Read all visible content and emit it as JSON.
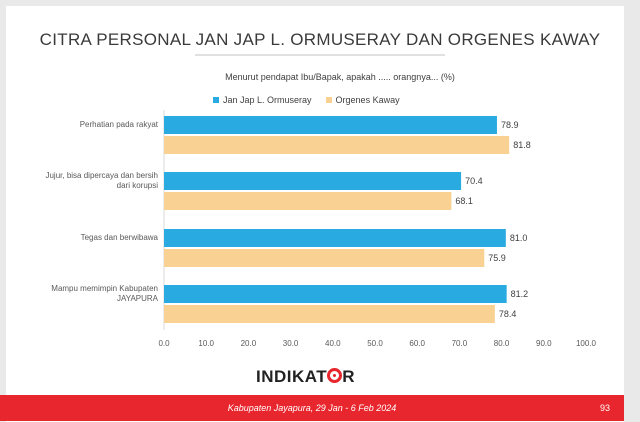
{
  "title": "CITRA PERSONAL JAN JAP L. ORMUSERAY DAN ORGENES KAWAY",
  "footer": {
    "text": "Kabupaten Jayapura, 29 Jan - 6 Feb 2024",
    "page": "93"
  },
  "logo": {
    "text_left": "INDIKAT",
    "text_right": "R"
  },
  "colors": {
    "series1": "#29aae1",
    "series2": "#f9d293",
    "accent": "#e8262d"
  },
  "chart_data": {
    "type": "bar",
    "orientation": "horizontal",
    "title": "Menurut pendapat Ibu/Bapak, apakah ..... orangnya... (%)",
    "categories": [
      [
        "Perhatian pada rakyat"
      ],
      [
        "Jujur, bisa dipercaya dan bersih",
        "dari korupsi"
      ],
      [
        "Tegas dan berwibawa"
      ],
      [
        "Mampu memimpin Kabupaten",
        "JAYAPURA"
      ]
    ],
    "series": [
      {
        "name": "Jan Jap L. Ormuseray",
        "color": "#29aae1",
        "values": [
          78.9,
          70.4,
          81.0,
          81.2
        ]
      },
      {
        "name": "Orgenes Kaway",
        "color": "#f9d293",
        "values": [
          81.8,
          68.1,
          75.9,
          78.4
        ]
      }
    ],
    "xlim": [
      0,
      100
    ],
    "xticks": [
      "0.0",
      "10.0",
      "20.0",
      "30.0",
      "40.0",
      "50.0",
      "60.0",
      "70.0",
      "80.0",
      "90.0",
      "100.0"
    ],
    "legend_position": "top",
    "grid": false
  }
}
